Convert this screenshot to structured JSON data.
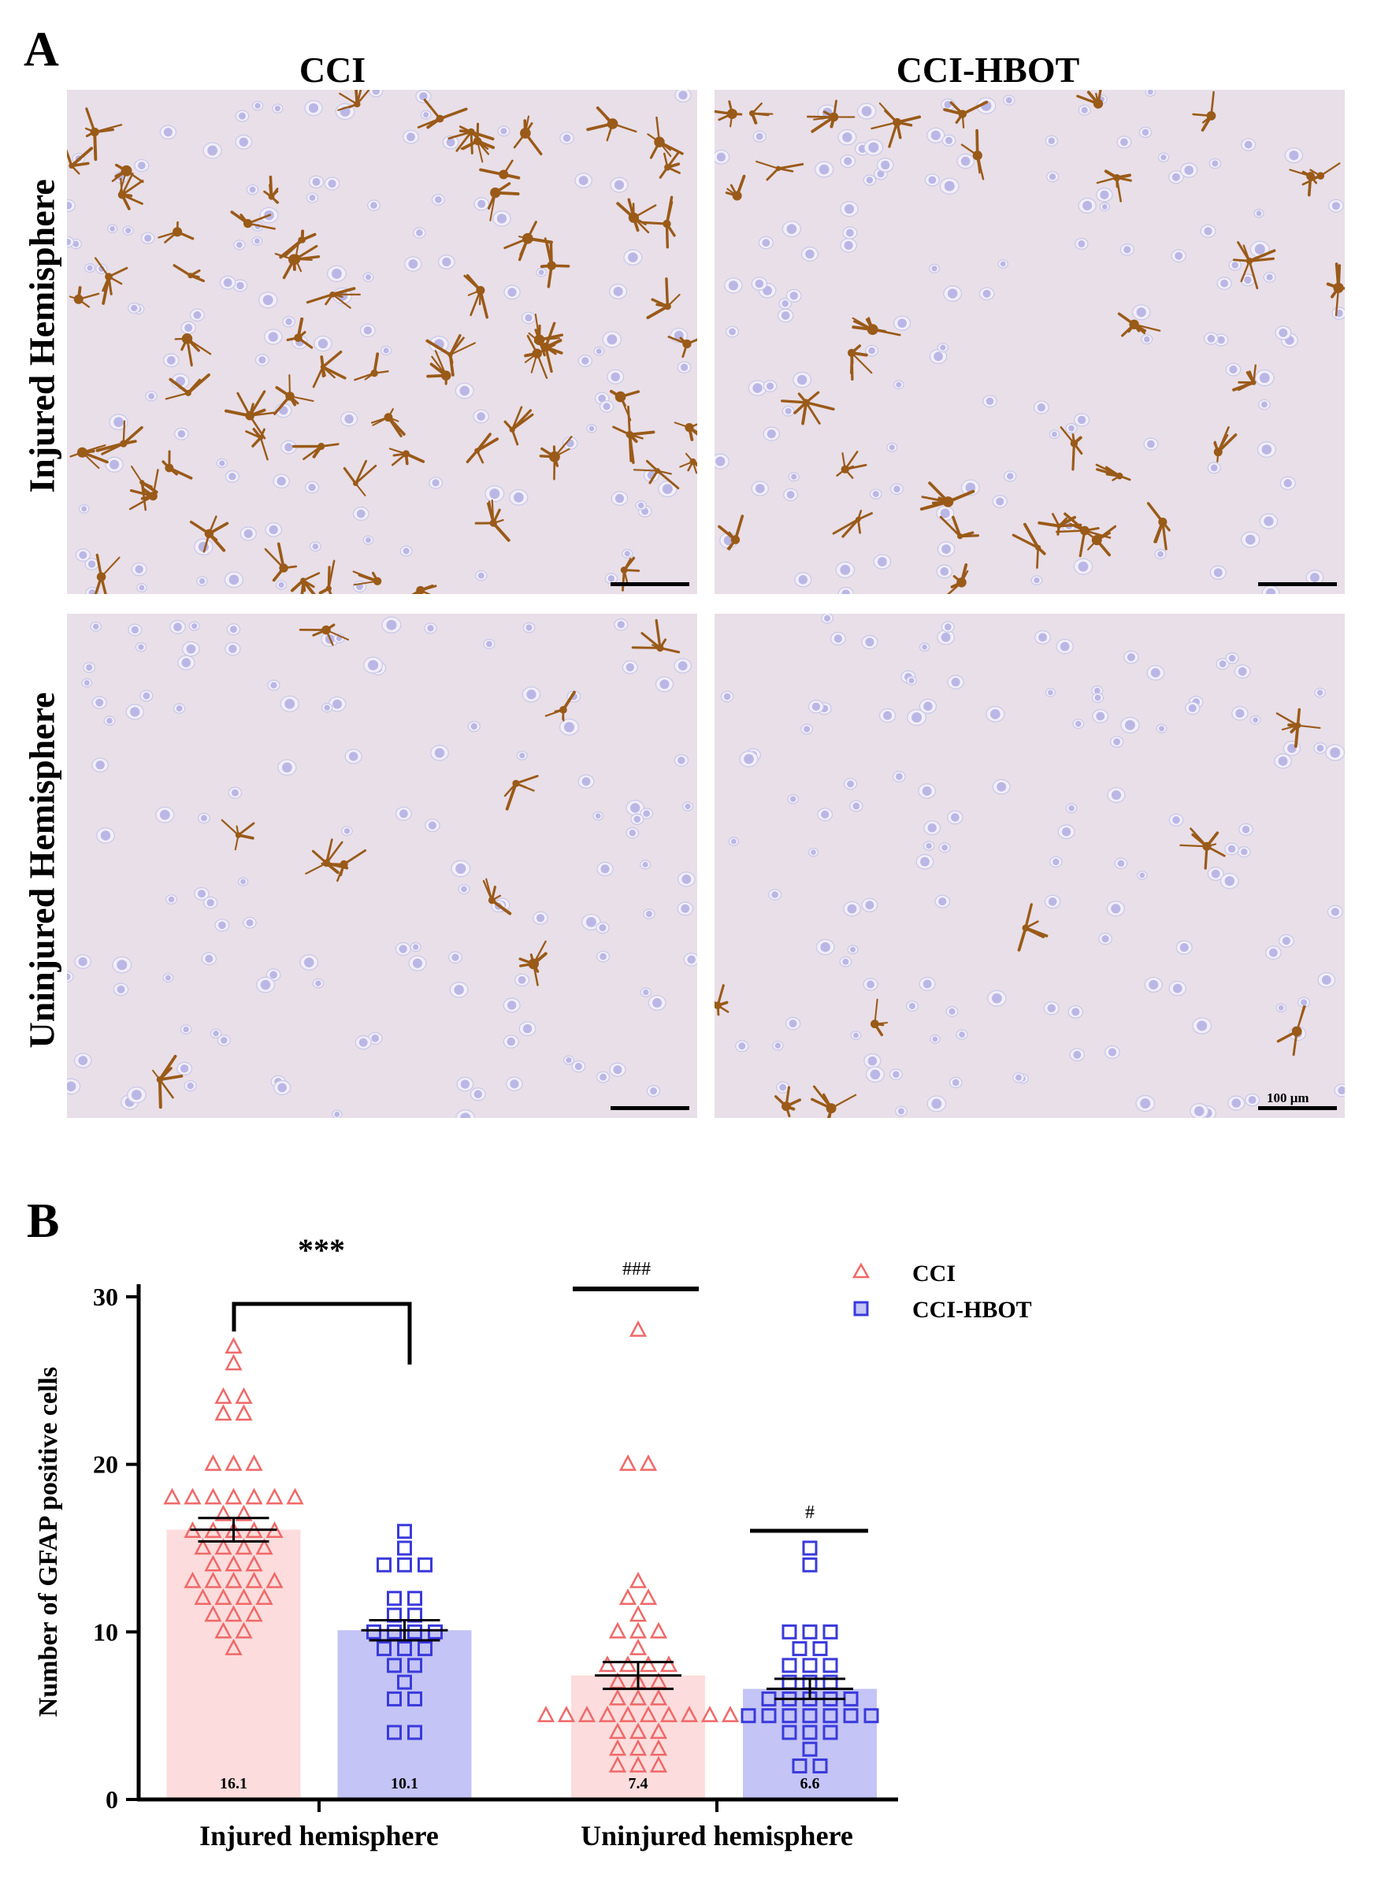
{
  "panel_a": {
    "letter": "A",
    "columns": [
      "CCI",
      "CCI-HBOT"
    ],
    "rows": [
      "Injured Hemisphere",
      "Uninjured Hemisphere"
    ],
    "scale_bar_label": "100 μm"
  },
  "panel_b": {
    "letter": "B",
    "significance": {
      "injured": "***",
      "uninjured_cci": "###",
      "uninjured_hbot": "#"
    }
  },
  "colors": {
    "cci": "#f06868",
    "cci_fill": "#fcdcdc",
    "hbot": "#3a3adc",
    "hbot_fill": "#c4c4f6",
    "astrocyte": "#9a5a18",
    "nucleus": "#8a8ad8"
  },
  "chart_data": {
    "type": "bar",
    "ylabel": "Number of GFAP  positive cells",
    "xlabel": "",
    "ylim": [
      0,
      30
    ],
    "yticks": [
      0,
      10,
      20,
      30
    ],
    "categories": [
      "Injured hemisphere",
      "Uninjured hemisphere"
    ],
    "legend_position": "top-right",
    "series": [
      {
        "name": "CCI",
        "marker": "triangle",
        "means": [
          16.1,
          7.4
        ],
        "mean_labels": [
          "16.1",
          "7.4"
        ],
        "sem": [
          0.7,
          0.8
        ],
        "points": [
          [
            27,
            26,
            24,
            24,
            23,
            23,
            20,
            20,
            20,
            18,
            18,
            18,
            18,
            18,
            18,
            18,
            17,
            17,
            16,
            16,
            16,
            16,
            16,
            15,
            15,
            15,
            15,
            14,
            14,
            14,
            13,
            13,
            13,
            13,
            13,
            12,
            12,
            12,
            12,
            11,
            11,
            11,
            10,
            10,
            9
          ],
          [
            28,
            20,
            20,
            13,
            12,
            12,
            11,
            10,
            10,
            10,
            9,
            8,
            8,
            8,
            8,
            7,
            7,
            7,
            6,
            6,
            6,
            5,
            5,
            5,
            5,
            5,
            5,
            5,
            5,
            5,
            5,
            4,
            4,
            4,
            3,
            3,
            3,
            2,
            2,
            2
          ]
        ]
      },
      {
        "name": "CCI-HBOT",
        "marker": "square",
        "means": [
          10.1,
          6.6
        ],
        "mean_labels": [
          "10.1",
          "6.6"
        ],
        "sem": [
          0.6,
          0.6
        ],
        "points": [
          [
            16,
            15,
            14,
            14,
            14,
            12,
            12,
            11,
            11,
            10,
            10,
            10,
            10,
            9,
            9,
            9,
            8,
            8,
            7,
            6,
            6,
            4,
            4
          ],
          [
            15,
            14,
            10,
            10,
            10,
            9,
            9,
            8,
            8,
            8,
            7,
            7,
            7,
            6,
            6,
            6,
            6,
            6,
            5,
            5,
            5,
            5,
            5,
            5,
            5,
            4,
            4,
            4,
            3,
            2,
            2
          ]
        ]
      }
    ]
  }
}
